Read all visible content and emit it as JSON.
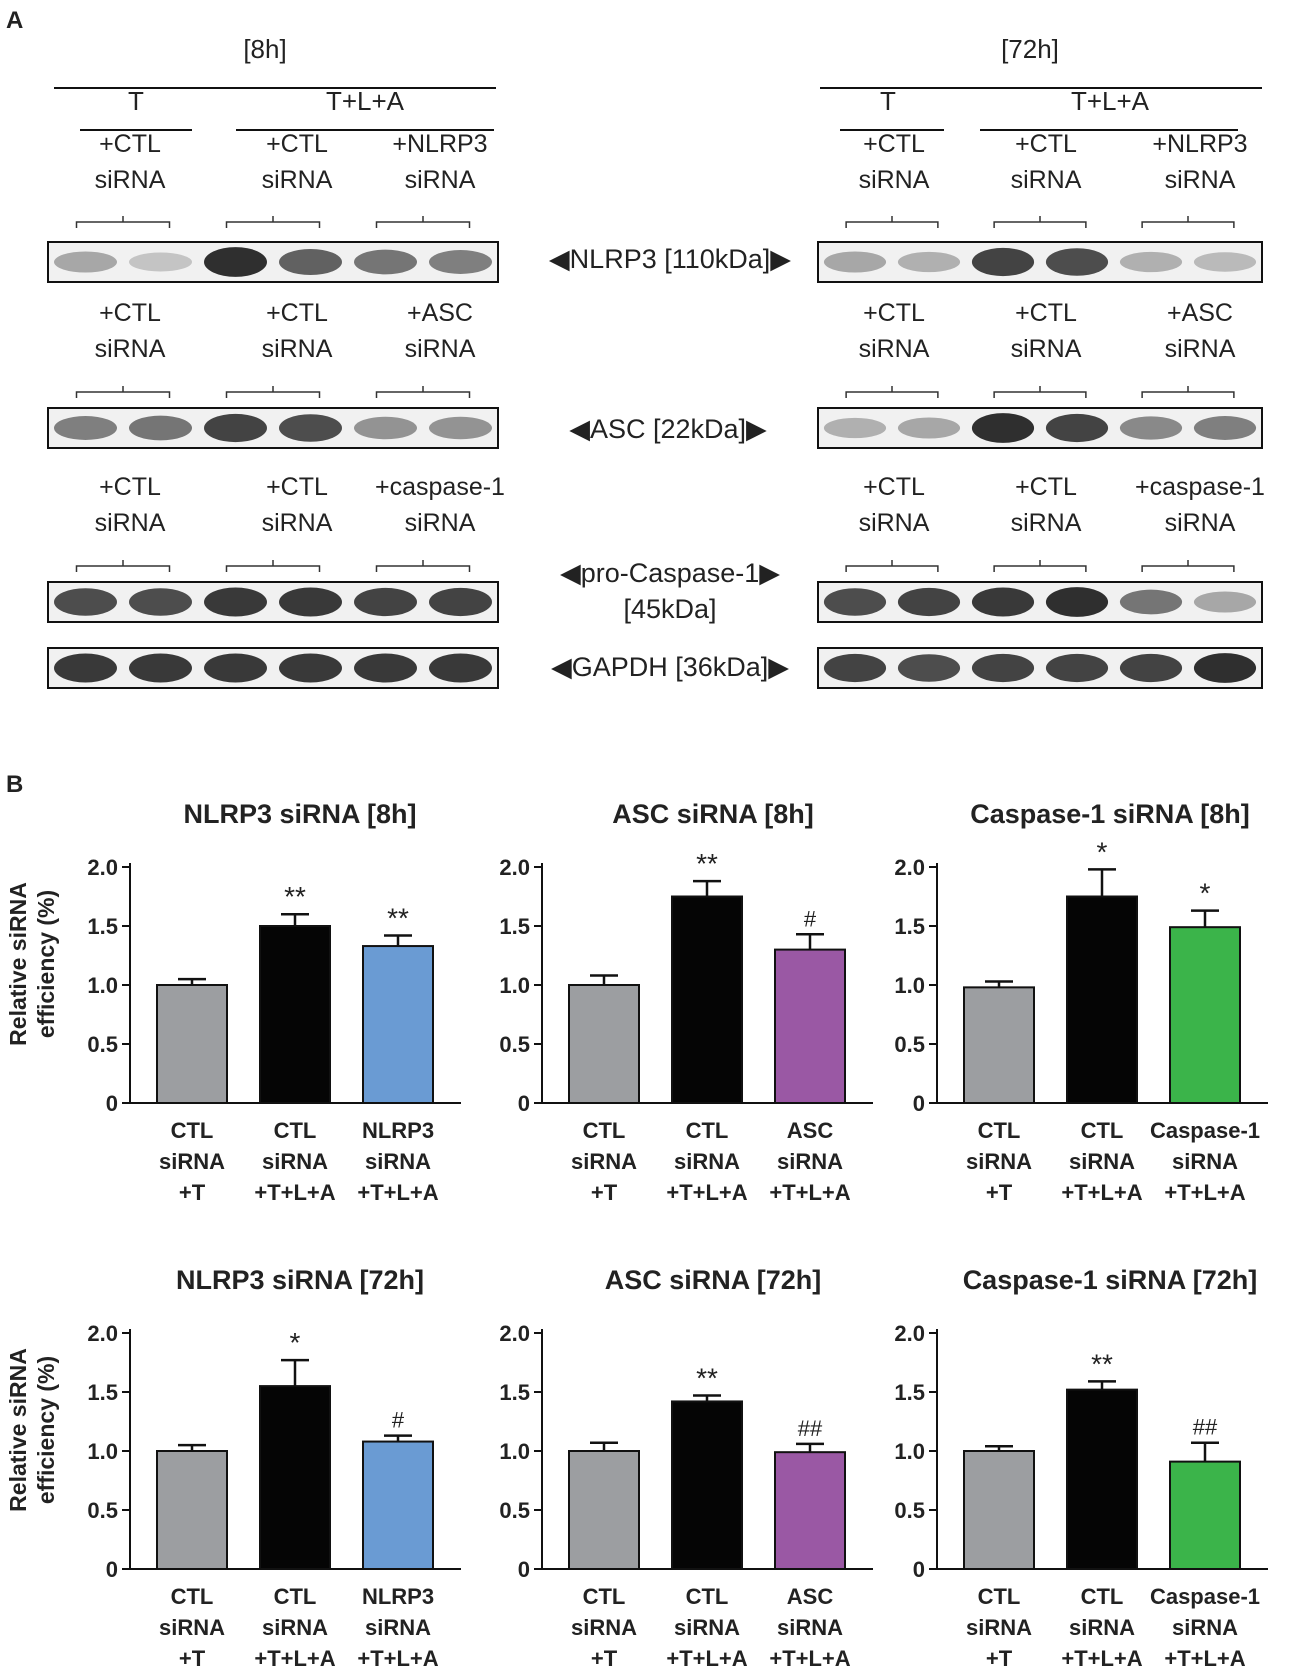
{
  "panel_a": {
    "label": "A",
    "left": {
      "time": "[8h]",
      "groups": [
        "T",
        "T+L+A"
      ],
      "rows": [
        {
          "lane_labels": [
            [
              "+CTL",
              "siRNA"
            ],
            [
              "+CTL",
              "siRNA"
            ],
            [
              "+NLRP3",
              "siRNA"
            ]
          ],
          "marker": "◀NLRP3 [110kDa]▶",
          "intensity": [
            0.35,
            0.2,
            0.95,
            0.7,
            0.6,
            0.55
          ]
        },
        {
          "lane_labels": [
            [
              "+CTL",
              "siRNA"
            ],
            [
              "+CTL",
              "siRNA"
            ],
            [
              "+ASC",
              "siRNA"
            ]
          ],
          "marker": "◀ASC [22kDa]▶",
          "intensity": [
            0.55,
            0.6,
            0.85,
            0.8,
            0.45,
            0.45
          ]
        },
        {
          "lane_labels": [
            [
              "+CTL",
              "siRNA"
            ],
            [
              "+CTL",
              "siRNA"
            ],
            [
              "+caspase-1",
              "siRNA"
            ]
          ],
          "marker_lines": [
            "◀pro-Caspase-1▶",
            "[45kDa]"
          ],
          "intensity": [
            0.8,
            0.8,
            0.9,
            0.9,
            0.85,
            0.85
          ]
        },
        {
          "marker": "◀GAPDH [36kDa]▶",
          "intensity": [
            0.9,
            0.9,
            0.9,
            0.9,
            0.9,
            0.9
          ]
        }
      ]
    },
    "right": {
      "time": "[72h]",
      "groups": [
        "T",
        "T+L+A"
      ],
      "rows": [
        {
          "lane_labels": [
            [
              "+CTL",
              "siRNA"
            ],
            [
              "+CTL",
              "siRNA"
            ],
            [
              "+NLRP3",
              "siRNA"
            ]
          ],
          "intensity": [
            0.35,
            0.3,
            0.85,
            0.8,
            0.3,
            0.25
          ]
        },
        {
          "lane_labels": [
            [
              "+CTL",
              "siRNA"
            ],
            [
              "+CTL",
              "siRNA"
            ],
            [
              "+ASC",
              "siRNA"
            ]
          ],
          "intensity": [
            0.3,
            0.35,
            0.95,
            0.85,
            0.5,
            0.55
          ]
        },
        {
          "lane_labels": [
            [
              "+CTL",
              "siRNA"
            ],
            [
              "+CTL",
              "siRNA"
            ],
            [
              "+caspase-1",
              "siRNA"
            ]
          ],
          "intensity": [
            0.8,
            0.85,
            0.9,
            0.95,
            0.6,
            0.35
          ]
        },
        {
          "intensity": [
            0.85,
            0.8,
            0.85,
            0.85,
            0.85,
            0.95
          ]
        }
      ]
    }
  },
  "panel_b": {
    "label": "B",
    "ylabel_lines": [
      "Relative siRNA",
      "efficiency (%)"
    ]
  },
  "colors": {
    "gray": "#9c9ea1",
    "black": "#050505",
    "blue": "#6a9bd3",
    "purple": "#9a58a4",
    "green": "#3bb44a"
  },
  "chart_data": [
    {
      "type": "bar",
      "title": "NLRP3  siRNA  [8h]",
      "ylim": [
        0,
        2.0
      ],
      "yticks": [
        "0",
        "0.5",
        "1.0",
        "1.5",
        "2.0"
      ],
      "categories": [
        [
          "CTL",
          "siRNA",
          "+T"
        ],
        [
          "CTL",
          "siRNA",
          "+T+L+A"
        ],
        [
          "NLRP3",
          "siRNA",
          "+T+L+A"
        ]
      ],
      "values": [
        1.0,
        1.5,
        1.33
      ],
      "errors": [
        0.05,
        0.1,
        0.09
      ],
      "annotations": [
        "",
        "**",
        "**"
      ],
      "colors": [
        "gray",
        "black",
        "blue"
      ]
    },
    {
      "type": "bar",
      "title": "ASC  siRNA  [8h]",
      "ylim": [
        0,
        2.0
      ],
      "yticks": [
        "0",
        "0.5",
        "1.0",
        "1.5",
        "2.0"
      ],
      "categories": [
        [
          "CTL",
          "siRNA",
          "+T"
        ],
        [
          "CTL",
          "siRNA",
          "+T+L+A"
        ],
        [
          "ASC",
          "siRNA",
          "+T+L+A"
        ]
      ],
      "values": [
        1.0,
        1.75,
        1.3
      ],
      "errors": [
        0.08,
        0.13,
        0.13
      ],
      "annotations": [
        "",
        "**",
        "#"
      ],
      "colors": [
        "gray",
        "black",
        "purple"
      ]
    },
    {
      "type": "bar",
      "title": "Caspase-1  siRNA  [8h]",
      "ylim": [
        0,
        2.0
      ],
      "yticks": [
        "0",
        "0.5",
        "1.0",
        "1.5",
        "2.0"
      ],
      "categories": [
        [
          "CTL",
          "siRNA",
          "+T"
        ],
        [
          "CTL",
          "siRNA",
          "+T+L+A"
        ],
        [
          "Caspase-1",
          "siRNA",
          "+T+L+A"
        ]
      ],
      "values": [
        0.98,
        1.75,
        1.49
      ],
      "errors": [
        0.05,
        0.23,
        0.14
      ],
      "annotations": [
        "",
        "*",
        "*"
      ],
      "colors": [
        "gray",
        "black",
        "green"
      ]
    },
    {
      "type": "bar",
      "title": "NLRP3  siRNA  [72h]",
      "ylim": [
        0,
        2.0
      ],
      "yticks": [
        "0",
        "0.5",
        "1.0",
        "1.5",
        "2.0"
      ],
      "categories": [
        [
          "CTL",
          "siRNA",
          "+T"
        ],
        [
          "CTL",
          "siRNA",
          "+T+L+A"
        ],
        [
          "NLRP3",
          "siRNA",
          "+T+L+A"
        ]
      ],
      "values": [
        1.0,
        1.55,
        1.08
      ],
      "errors": [
        0.05,
        0.22,
        0.05
      ],
      "annotations": [
        "",
        "*",
        "#"
      ],
      "colors": [
        "gray",
        "black",
        "blue"
      ]
    },
    {
      "type": "bar",
      "title": "ASC  siRNA  [72h]",
      "ylim": [
        0,
        2.0
      ],
      "yticks": [
        "0",
        "0.5",
        "1.0",
        "1.5",
        "2.0"
      ],
      "categories": [
        [
          "CTL",
          "siRNA",
          "+T"
        ],
        [
          "CTL",
          "siRNA",
          "+T+L+A"
        ],
        [
          "ASC",
          "siRNA",
          "+T+L+A"
        ]
      ],
      "values": [
        1.0,
        1.42,
        0.99
      ],
      "errors": [
        0.07,
        0.05,
        0.07
      ],
      "annotations": [
        "",
        "**",
        "##"
      ],
      "colors": [
        "gray",
        "black",
        "purple"
      ]
    },
    {
      "type": "bar",
      "title": "Caspase-1  siRNA  [72h]",
      "ylim": [
        0,
        2.0
      ],
      "yticks": [
        "0",
        "0.5",
        "1.0",
        "1.5",
        "2.0"
      ],
      "categories": [
        [
          "CTL",
          "siRNA",
          "+T"
        ],
        [
          "CTL",
          "siRNA",
          "+T+L+A"
        ],
        [
          "Caspase-1",
          "siRNA",
          "+T+L+A"
        ]
      ],
      "values": [
        1.0,
        1.52,
        0.91
      ],
      "errors": [
        0.04,
        0.07,
        0.16
      ],
      "annotations": [
        "",
        "**",
        "##"
      ],
      "colors": [
        "gray",
        "black",
        "green"
      ]
    }
  ]
}
